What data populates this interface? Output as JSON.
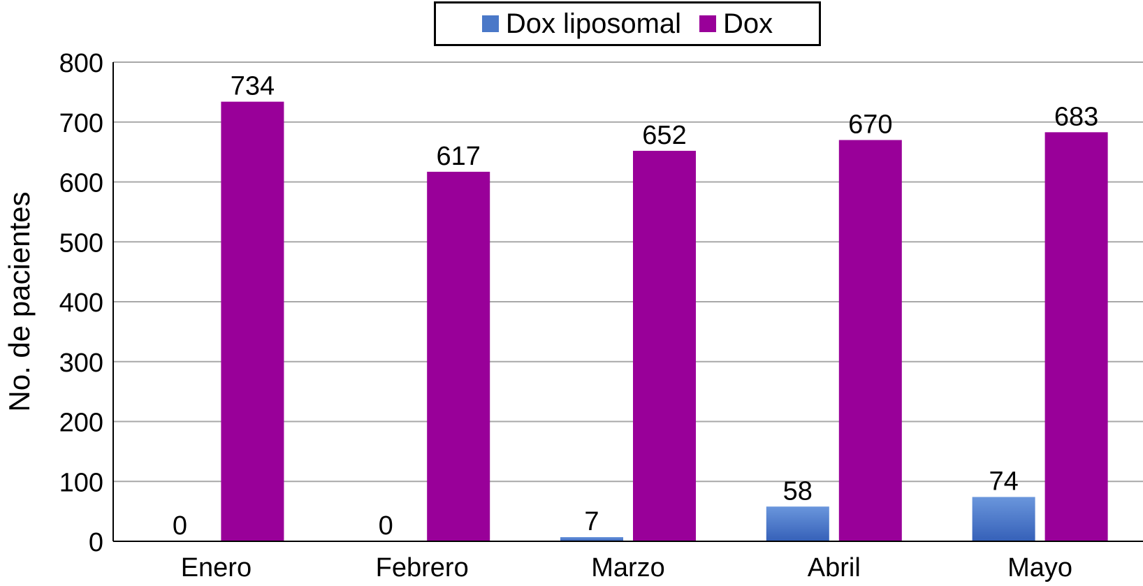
{
  "chart_data": {
    "type": "bar",
    "categories": [
      "Enero",
      "Febrero",
      "Marzo",
      "Abril",
      "Mayo"
    ],
    "series": [
      {
        "name": "Dox liposomal",
        "color": "#4a78c8",
        "values": [
          0,
          0,
          7,
          58,
          74
        ]
      },
      {
        "name": "Dox",
        "color": "#990099",
        "values": [
          734,
          617,
          652,
          670,
          683
        ]
      }
    ],
    "data_labels": {
      "Dox liposomal": [
        "0",
        "0",
        "7",
        "58",
        "74"
      ],
      "Dox": [
        "734",
        "617",
        "652",
        "670",
        "683"
      ]
    },
    "title": "",
    "xlabel": "",
    "ylabel": "No. de pacientes",
    "ylim": [
      0,
      800
    ],
    "yticks": [
      "0",
      "100",
      "200",
      "300",
      "400",
      "500",
      "600",
      "700",
      "800"
    ],
    "grid": true,
    "legend_position": "top-center"
  }
}
